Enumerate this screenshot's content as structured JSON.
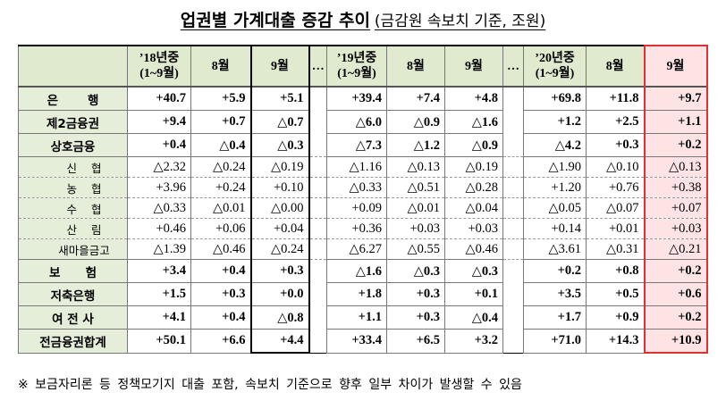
{
  "header": {
    "title": "업권별 가계대출 증감 추이",
    "subtitle": "(금감원 속보치 기준, 조원)"
  },
  "table": {
    "columns": [
      [
        "’18년중",
        "(1~9월)"
      ],
      [
        "8월"
      ],
      [
        "9월"
      ],
      [
        "…"
      ],
      [
        "’19년중",
        "(1~9월)"
      ],
      [
        "8월"
      ],
      [
        "9월"
      ],
      [
        "…"
      ],
      [
        "’20년중",
        "(1~9월)"
      ],
      [
        "8월"
      ],
      [
        "9월"
      ]
    ],
    "rows": [
      {
        "label": "은       행",
        "values": [
          "+40.7",
          "+5.9",
          "+5.1",
          "+39.4",
          "+7.4",
          "+4.8",
          "+69.8",
          "+11.8",
          "+9.7"
        ]
      },
      {
        "label": "제2금융권",
        "values": [
          "+9.4",
          "+0.7",
          "△0.7",
          "△6.0",
          "△0.9",
          "△1.6",
          "+1.2",
          "+2.5",
          "+1.1"
        ]
      },
      {
        "label": "상호금융",
        "values": [
          "+0.4",
          "△0.4",
          "△0.3",
          "△7.3",
          "△1.2",
          "△0.9",
          "△4.2",
          "+0.3",
          "+0.2"
        ]
      },
      {
        "label": "신    협",
        "sub": true,
        "values": [
          "△2.32",
          "△0.24",
          "△0.19",
          "△1.16",
          "△0.13",
          "△0.19",
          "△1.90",
          "△0.10",
          "△0.13"
        ]
      },
      {
        "label": "농    협",
        "sub": true,
        "values": [
          "+3.96",
          "+0.24",
          "+0.10",
          "△0.33",
          "△0.51",
          "△0.28",
          "+1.20",
          "+0.76",
          "+0.38"
        ]
      },
      {
        "label": "수    협",
        "sub": true,
        "values": [
          "△0.33",
          "△0.01",
          "△0.00",
          "+0.09",
          "△0.01",
          "△0.04",
          "△0.05",
          "△0.07",
          "+0.07"
        ]
      },
      {
        "label": "산    림",
        "sub": true,
        "values": [
          "+0.46",
          "+0.06",
          "+0.04",
          "+0.36",
          "+0.03",
          "+0.03",
          "+0.14",
          "+0.01",
          "+0.03"
        ]
      },
      {
        "label": "새마을금고",
        "sub": true,
        "values": [
          "△1.39",
          "△0.46",
          "△0.24",
          "△6.27",
          "△0.55",
          "△0.46",
          "△3.61",
          "△0.31",
          "△0.21"
        ]
      },
      {
        "label": "보      험",
        "values": [
          "+3.4",
          "+0.4",
          "+0.3",
          "△1.6",
          "△0.3",
          "△0.3",
          "+0.2",
          "+0.8",
          "+0.2"
        ]
      },
      {
        "label": "저축은행",
        "values": [
          "+1.5",
          "+0.3",
          "+0.0",
          "+1.8",
          "+0.3",
          "+0.1",
          "+3.5",
          "+0.5",
          "+0.6"
        ]
      },
      {
        "label": "여 전 사",
        "values": [
          "+4.1",
          "+0.4",
          "△0.8",
          "+1.1",
          "+0.3",
          "△0.4",
          "+1.7",
          "+0.9",
          "+0.2"
        ]
      },
      {
        "label": "전금융권합계",
        "values": [
          "+50.1",
          "+6.6",
          "+4.4",
          "+33.4",
          "+6.5",
          "+3.2",
          "+71.0",
          "+14.3",
          "+10.9"
        ]
      }
    ]
  },
  "footnote": "※ 보금자리론 등 정책모기지 대출 포함, 속보치 기준으로 향후 일부 차이가 발생할 수 있음"
}
